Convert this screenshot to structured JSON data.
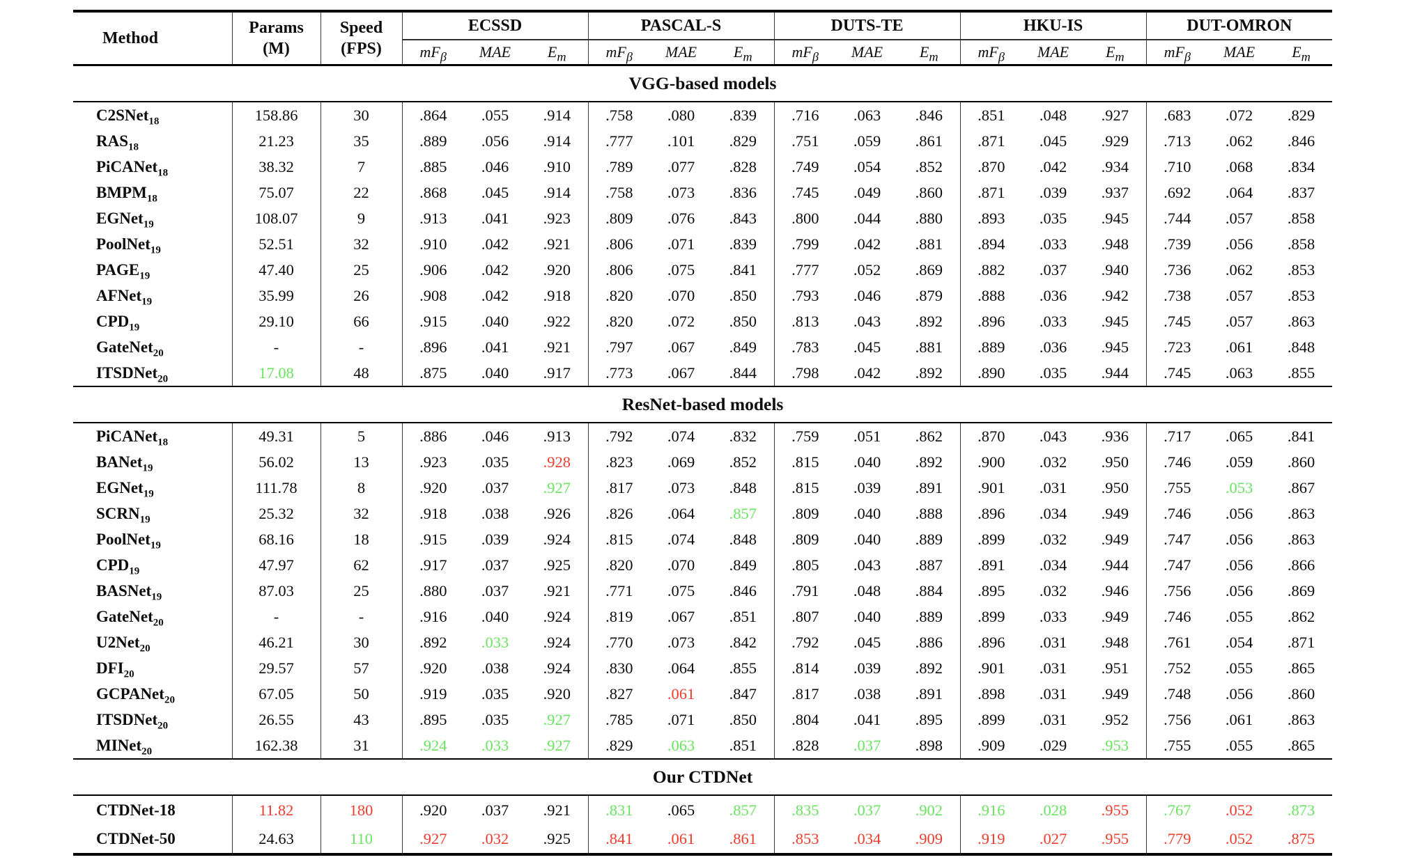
{
  "palette": {
    "best_red": "#ef3c2d",
    "second_green": "#69e45f"
  },
  "table": {
    "header": {
      "method": "Method",
      "params_line1": "Params",
      "params_line2": "(M)",
      "speed_line1": "Speed",
      "speed_line2": "(FPS)",
      "datasets": [
        "ECSSD",
        "PASCAL-S",
        "DUTS-TE",
        "HKU-IS",
        "DUT-OMRON"
      ],
      "metrics": [
        {
          "base": "mF",
          "sub": "β"
        },
        {
          "base": "MAE",
          "sub": ""
        },
        {
          "base": "E",
          "sub": "m"
        }
      ]
    },
    "sections": [
      {
        "title": "VGG-based models",
        "rows": [
          {
            "method": "C2SNet",
            "sub": "18",
            "cells": [
              "158.86",
              "30",
              ".864",
              ".055",
              ".914",
              ".758",
              ".080",
              ".839",
              ".716",
              ".063",
              ".846",
              ".851",
              ".048",
              ".927",
              ".683",
              ".072",
              ".829"
            ],
            "hl": "................."
          },
          {
            "method": "RAS",
            "sub": "18",
            "cells": [
              "21.23",
              "35",
              ".889",
              ".056",
              ".914",
              ".777",
              ".101",
              ".829",
              ".751",
              ".059",
              ".861",
              ".871",
              ".045",
              ".929",
              ".713",
              ".062",
              ".846"
            ],
            "hl": "................."
          },
          {
            "method": "PiCANet",
            "sub": "18",
            "cells": [
              "38.32",
              "7",
              ".885",
              ".046",
              ".910",
              ".789",
              ".077",
              ".828",
              ".749",
              ".054",
              ".852",
              ".870",
              ".042",
              ".934",
              ".710",
              ".068",
              ".834"
            ],
            "hl": "................."
          },
          {
            "method": "BMPM",
            "sub": "18",
            "cells": [
              "75.07",
              "22",
              ".868",
              ".045",
              ".914",
              ".758",
              ".073",
              ".836",
              ".745",
              ".049",
              ".860",
              ".871",
              ".039",
              ".937",
              ".692",
              ".064",
              ".837"
            ],
            "hl": "................."
          },
          {
            "method": "EGNet",
            "sub": "19",
            "cells": [
              "108.07",
              "9",
              ".913",
              ".041",
              ".923",
              ".809",
              ".076",
              ".843",
              ".800",
              ".044",
              ".880",
              ".893",
              ".035",
              ".945",
              ".744",
              ".057",
              ".858"
            ],
            "hl": "................."
          },
          {
            "method": "PoolNet",
            "sub": "19",
            "cells": [
              "52.51",
              "32",
              ".910",
              ".042",
              ".921",
              ".806",
              ".071",
              ".839",
              ".799",
              ".042",
              ".881",
              ".894",
              ".033",
              ".948",
              ".739",
              ".056",
              ".858"
            ],
            "hl": "................."
          },
          {
            "method": "PAGE",
            "sub": "19",
            "cells": [
              "47.40",
              "25",
              ".906",
              ".042",
              ".920",
              ".806",
              ".075",
              ".841",
              ".777",
              ".052",
              ".869",
              ".882",
              ".037",
              ".940",
              ".736",
              ".062",
              ".853"
            ],
            "hl": "................."
          },
          {
            "method": "AFNet",
            "sub": "19",
            "cells": [
              "35.99",
              "26",
              ".908",
              ".042",
              ".918",
              ".820",
              ".070",
              ".850",
              ".793",
              ".046",
              ".879",
              ".888",
              ".036",
              ".942",
              ".738",
              ".057",
              ".853"
            ],
            "hl": "................."
          },
          {
            "method": "CPD",
            "sub": "19",
            "cells": [
              "29.10",
              "66",
              ".915",
              ".040",
              ".922",
              ".820",
              ".072",
              ".850",
              ".813",
              ".043",
              ".892",
              ".896",
              ".033",
              ".945",
              ".745",
              ".057",
              ".863"
            ],
            "hl": "................."
          },
          {
            "method": "GateNet",
            "sub": "20",
            "cells": [
              "-",
              "-",
              ".896",
              ".041",
              ".921",
              ".797",
              ".067",
              ".849",
              ".783",
              ".045",
              ".881",
              ".889",
              ".036",
              ".945",
              ".723",
              ".061",
              ".848"
            ],
            "hl": "................."
          },
          {
            "method": "ITSDNet",
            "sub": "20",
            "cells": [
              "17.08",
              "48",
              ".875",
              ".040",
              ".917",
              ".773",
              ".067",
              ".844",
              ".798",
              ".042",
              ".892",
              ".890",
              ".035",
              ".944",
              ".745",
              ".063",
              ".855"
            ],
            "hl": "g................"
          }
        ]
      },
      {
        "title": "ResNet-based models",
        "rows": [
          {
            "method": "PiCANet",
            "sub": "18",
            "cells": [
              "49.31",
              "5",
              ".886",
              ".046",
              ".913",
              ".792",
              ".074",
              ".832",
              ".759",
              ".051",
              ".862",
              ".870",
              ".043",
              ".936",
              ".717",
              ".065",
              ".841"
            ],
            "hl": "................."
          },
          {
            "method": "BANet",
            "sub": "19",
            "cells": [
              "56.02",
              "13",
              ".923",
              ".035",
              ".928",
              ".823",
              ".069",
              ".852",
              ".815",
              ".040",
              ".892",
              ".900",
              ".032",
              ".950",
              ".746",
              ".059",
              ".860"
            ],
            "hl": "....r............"
          },
          {
            "method": "EGNet",
            "sub": "19",
            "cells": [
              "111.78",
              "8",
              ".920",
              ".037",
              ".927",
              ".817",
              ".073",
              ".848",
              ".815",
              ".039",
              ".891",
              ".901",
              ".031",
              ".950",
              ".755",
              ".053",
              ".867"
            ],
            "hl": "....g..........g."
          },
          {
            "method": "SCRN",
            "sub": "19",
            "cells": [
              "25.32",
              "32",
              ".918",
              ".038",
              ".926",
              ".826",
              ".064",
              ".857",
              ".809",
              ".040",
              ".888",
              ".896",
              ".034",
              ".949",
              ".746",
              ".056",
              ".863"
            ],
            "hl": ".......g........."
          },
          {
            "method": "PoolNet",
            "sub": "19",
            "cells": [
              "68.16",
              "18",
              ".915",
              ".039",
              ".924",
              ".815",
              ".074",
              ".848",
              ".809",
              ".040",
              ".889",
              ".899",
              ".032",
              ".949",
              ".747",
              ".056",
              ".863"
            ],
            "hl": "................."
          },
          {
            "method": "CPD",
            "sub": "19",
            "cells": [
              "47.97",
              "62",
              ".917",
              ".037",
              ".925",
              ".820",
              ".070",
              ".849",
              ".805",
              ".043",
              ".887",
              ".891",
              ".034",
              ".944",
              ".747",
              ".056",
              ".866"
            ],
            "hl": "................."
          },
          {
            "method": "BASNet",
            "sub": "19",
            "cells": [
              "87.03",
              "25",
              ".880",
              ".037",
              ".921",
              ".771",
              ".075",
              ".846",
              ".791",
              ".048",
              ".884",
              ".895",
              ".032",
              ".946",
              ".756",
              ".056",
              ".869"
            ],
            "hl": "................."
          },
          {
            "method": "GateNet",
            "sub": "20",
            "cells": [
              "-",
              "-",
              ".916",
              ".040",
              ".924",
              ".819",
              ".067",
              ".851",
              ".807",
              ".040",
              ".889",
              ".899",
              ".033",
              ".949",
              ".746",
              ".055",
              ".862"
            ],
            "hl": "................."
          },
          {
            "method": "U2Net",
            "sub": "20",
            "cells": [
              "46.21",
              "30",
              ".892",
              ".033",
              ".924",
              ".770",
              ".073",
              ".842",
              ".792",
              ".045",
              ".886",
              ".896",
              ".031",
              ".948",
              ".761",
              ".054",
              ".871"
            ],
            "hl": "...g............."
          },
          {
            "method": "DFI",
            "sub": "20",
            "cells": [
              "29.57",
              "57",
              ".920",
              ".038",
              ".924",
              ".830",
              ".064",
              ".855",
              ".814",
              ".039",
              ".892",
              ".901",
              ".031",
              ".951",
              ".752",
              ".055",
              ".865"
            ],
            "hl": "................."
          },
          {
            "method": "GCPANet",
            "sub": "20",
            "cells": [
              "67.05",
              "50",
              ".919",
              ".035",
              ".920",
              ".827",
              ".061",
              ".847",
              ".817",
              ".038",
              ".891",
              ".898",
              ".031",
              ".949",
              ".748",
              ".056",
              ".860"
            ],
            "hl": "......r.........."
          },
          {
            "method": "ITSDNet",
            "sub": "20",
            "cells": [
              "26.55",
              "43",
              ".895",
              ".035",
              ".927",
              ".785",
              ".071",
              ".850",
              ".804",
              ".041",
              ".895",
              ".899",
              ".031",
              ".952",
              ".756",
              ".061",
              ".863"
            ],
            "hl": "....g............"
          },
          {
            "method": "MINet",
            "sub": "20",
            "cells": [
              "162.38",
              "31",
              ".924",
              ".033",
              ".927",
              ".829",
              ".063",
              ".851",
              ".828",
              ".037",
              ".898",
              ".909",
              ".029",
              ".953",
              ".755",
              ".055",
              ".865"
            ],
            "hl": "..ggg.g..g...g..."
          }
        ]
      },
      {
        "title": "Our CTDNet",
        "rows": [
          {
            "method": "CTDNet-18",
            "sub": "",
            "cells": [
              "11.82",
              "180",
              ".920",
              ".037",
              ".921",
              ".831",
              ".065",
              ".857",
              ".835",
              ".037",
              ".902",
              ".916",
              ".028",
              ".955",
              ".767",
              ".052",
              ".873"
            ],
            "hl": "rr...g.ggggggrgrg"
          },
          {
            "method": "CTDNet-50",
            "sub": "",
            "cells": [
              "24.63",
              "110",
              ".927",
              ".032",
              ".925",
              ".841",
              ".061",
              ".861",
              ".853",
              ".034",
              ".909",
              ".919",
              ".027",
              ".955",
              ".779",
              ".052",
              ".875"
            ],
            "hl": ".grr.rrrrrrrrrrrr"
          }
        ]
      }
    ]
  }
}
